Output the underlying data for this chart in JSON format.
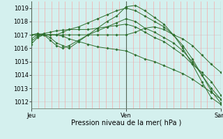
{
  "title": "Pression niveau de la mer( hPa )",
  "bg_color": "#d4f0ee",
  "grid_color_h": "#cccccc",
  "grid_color_v": "#ff9999",
  "line_color": "#2d6e2d",
  "separator_color": "#556655",
  "ylim": [
    1011.5,
    1019.5
  ],
  "yticks": [
    1012,
    1013,
    1014,
    1015,
    1016,
    1017,
    1018,
    1019
  ],
  "xtick_labels": [
    "Jeu",
    "Ven",
    "Sam"
  ],
  "xtick_pos": [
    0.0,
    0.5,
    1.0
  ],
  "lines": [
    {
      "x": [
        0.0,
        0.033,
        0.067,
        0.1,
        0.133,
        0.167,
        0.2,
        0.25,
        0.3,
        0.35,
        0.4,
        0.45,
        0.5,
        0.55,
        0.6,
        0.65,
        0.7,
        0.75,
        0.8,
        0.85,
        0.9,
        0.95,
        1.0
      ],
      "y": [
        1017.0,
        1017.0,
        1017.0,
        1017.0,
        1017.0,
        1017.0,
        1017.0,
        1017.0,
        1017.0,
        1017.0,
        1017.0,
        1017.0,
        1017.0,
        1017.2,
        1017.5,
        1017.6,
        1017.4,
        1017.0,
        1016.7,
        1016.2,
        1015.5,
        1014.8,
        1014.2
      ]
    },
    {
      "x": [
        0.0,
        0.033,
        0.067,
        0.1,
        0.133,
        0.167,
        0.2,
        0.25,
        0.3,
        0.35,
        0.4,
        0.45,
        0.5,
        0.55,
        0.6,
        0.65,
        0.7,
        0.75,
        0.8,
        0.85,
        0.9,
        0.95,
        1.0
      ],
      "y": [
        1016.5,
        1016.9,
        1017.0,
        1016.8,
        1016.4,
        1016.2,
        1016.0,
        1016.5,
        1017.0,
        1017.5,
        1018.0,
        1018.4,
        1019.1,
        1019.2,
        1018.8,
        1018.3,
        1017.8,
        1017.0,
        1016.0,
        1014.8,
        1013.5,
        1012.3,
        1011.8
      ]
    },
    {
      "x": [
        0.0,
        0.033,
        0.067,
        0.1,
        0.133,
        0.167,
        0.2,
        0.25,
        0.3,
        0.35,
        0.4,
        0.45,
        0.5,
        0.55,
        0.6,
        0.65,
        0.7,
        0.75,
        0.8,
        0.85,
        0.9,
        0.95,
        1.0
      ],
      "y": [
        1017.0,
        1017.1,
        1017.0,
        1017.0,
        1017.0,
        1017.2,
        1017.4,
        1017.6,
        1017.9,
        1018.2,
        1018.5,
        1018.8,
        1019.0,
        1018.8,
        1018.4,
        1018.0,
        1017.6,
        1017.0,
        1016.2,
        1015.2,
        1014.0,
        1012.8,
        1011.9
      ]
    },
    {
      "x": [
        0.0,
        0.033,
        0.067,
        0.1,
        0.133,
        0.167,
        0.2,
        0.25,
        0.3,
        0.35,
        0.4,
        0.45,
        0.5,
        0.55,
        0.6,
        0.65,
        0.7,
        0.75,
        0.8,
        0.85,
        0.9,
        0.95,
        1.0
      ],
      "y": [
        1016.3,
        1016.8,
        1017.0,
        1016.6,
        1016.2,
        1016.0,
        1016.2,
        1016.6,
        1017.0,
        1017.3,
        1017.6,
        1017.9,
        1018.2,
        1018.0,
        1017.5,
        1017.2,
        1016.8,
        1016.4,
        1015.8,
        1015.0,
        1014.0,
        1013.0,
        1012.2
      ]
    },
    {
      "x": [
        0.0,
        0.033,
        0.067,
        0.1,
        0.133,
        0.167,
        0.2,
        0.25,
        0.3,
        0.35,
        0.4,
        0.45,
        0.5,
        0.55,
        0.6,
        0.65,
        0.7,
        0.75,
        0.8,
        0.85,
        0.9,
        0.95,
        1.0
      ],
      "y": [
        1016.7,
        1017.0,
        1017.1,
        1017.2,
        1017.3,
        1017.35,
        1017.4,
        1017.4,
        1017.4,
        1017.5,
        1017.6,
        1017.7,
        1017.8,
        1017.6,
        1017.2,
        1016.8,
        1016.5,
        1016.0,
        1015.5,
        1014.8,
        1014.2,
        1013.5,
        1012.5
      ]
    },
    {
      "x": [
        0.0,
        0.033,
        0.067,
        0.1,
        0.133,
        0.167,
        0.2,
        0.25,
        0.3,
        0.35,
        0.4,
        0.45,
        0.5,
        0.55,
        0.6,
        0.65,
        0.7,
        0.75,
        0.8,
        0.85,
        0.9,
        0.95,
        1.0
      ],
      "y": [
        1017.0,
        1017.0,
        1017.0,
        1017.0,
        1017.0,
        1016.9,
        1016.7,
        1016.5,
        1016.3,
        1016.1,
        1016.0,
        1015.9,
        1015.8,
        1015.5,
        1015.2,
        1015.0,
        1014.7,
        1014.4,
        1014.1,
        1013.7,
        1013.2,
        1012.7,
        1012.2
      ]
    }
  ],
  "n_minor_v": 6,
  "title_fontsize": 7,
  "tick_fontsize": 6
}
